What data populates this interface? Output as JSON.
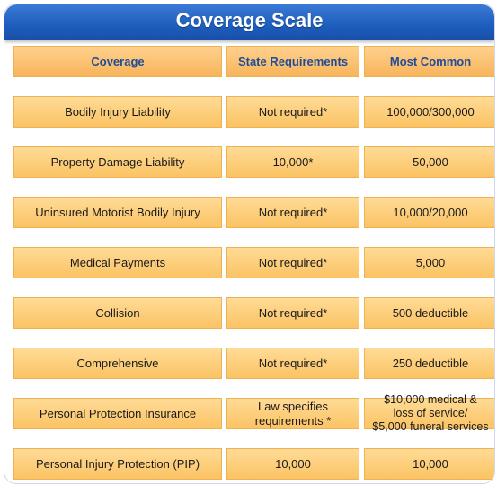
{
  "title": "Coverage Scale",
  "header": {
    "col1": "Coverage",
    "col2": "State Requirements",
    "col3": "Most Common"
  },
  "rows": [
    {
      "coverage": "Bodily Injury Liability",
      "state": "Not required*",
      "common": "100,000/300,000"
    },
    {
      "coverage": "Property Damage Liability",
      "state": "10,000*",
      "common": "50,000"
    },
    {
      "coverage": "Uninsured Motorist Bodily Injury",
      "state": "Not required*",
      "common": "10,000/20,000"
    },
    {
      "coverage": "Medical Payments",
      "state": "Not required*",
      "common": "5,000"
    },
    {
      "coverage": "Collision",
      "state": "Not required*",
      "common": "500 deductible"
    },
    {
      "coverage": "Comprehensive",
      "state": "Not required*",
      "common": "250 deductible"
    },
    {
      "coverage": "Personal Protection Insurance",
      "state": "Law specifies\nrequirements *",
      "common": "$10,000 medical &\nloss of service/\n$5,000 funeral services"
    },
    {
      "coverage": "Personal Injury Protection (PIP)",
      "state": "10,000",
      "common": "10,000"
    }
  ]
}
